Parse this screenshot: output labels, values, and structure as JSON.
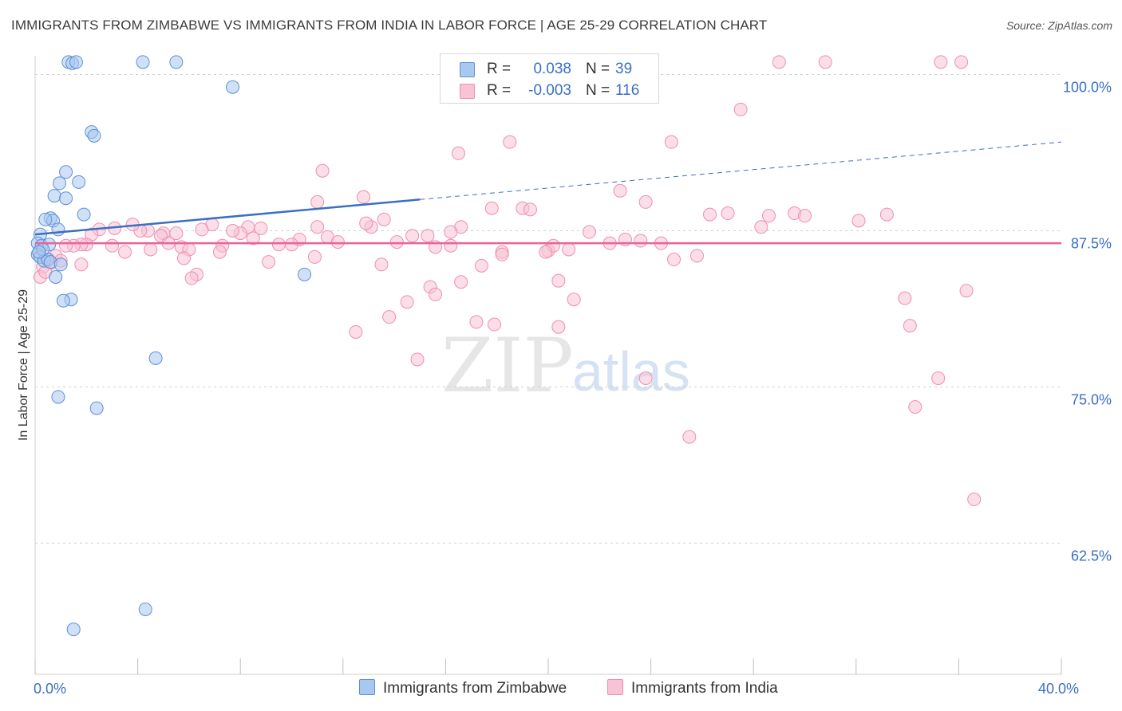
{
  "title": "IMMIGRANTS FROM ZIMBABWE VS IMMIGRANTS FROM INDIA IN LABOR FORCE | AGE 25-29 CORRELATION CHART",
  "source": "Source: ZipAtlas.com",
  "watermark": {
    "zip": "ZIP",
    "atlas": "atlas"
  },
  "stats": {
    "zimbabwe": {
      "r_label": "R =",
      "r_value": "0.038",
      "n_label": "N =",
      "n_value": "39"
    },
    "india": {
      "r_label": "R =",
      "r_value": "-0.003",
      "n_label": "N =",
      "n_value": "116"
    }
  },
  "legend": {
    "zimbabwe": "Immigrants from Zimbabwe",
    "india": "Immigrants from India"
  },
  "colors": {
    "zimbabwe_fill": "#a9c8f0",
    "zimbabwe_stroke": "#5e8fd6",
    "zimbabwe_line": "#3a6fc4",
    "india_fill": "#f8c3d4",
    "india_stroke": "#ee8fae",
    "india_line": "#e8649a",
    "tick_label": "#3a6fc4",
    "grid": "#d0d0d0"
  },
  "chart_data": {
    "type": "scatter",
    "title": "IMMIGRANTS FROM ZIMBABWE VS IMMIGRANTS FROM INDIA IN LABOR FORCE | AGE 25-29 CORRELATION CHART",
    "xlabel": "",
    "ylabel": "In Labor Force | Age 25-29",
    "xlim": [
      0,
      40
    ],
    "ylim": [
      52,
      101.5
    ],
    "x_ticks": [
      0,
      4,
      8,
      12,
      16,
      20,
      24,
      28,
      32,
      36,
      40
    ],
    "x_tick_labels": [
      {
        "value": 0,
        "label": "0.0%"
      },
      {
        "value": 40,
        "label": "40.0%"
      }
    ],
    "y_ticks": [
      {
        "value": 62.5,
        "label": "62.5%"
      },
      {
        "value": 75.0,
        "label": "75.0%"
      },
      {
        "value": 87.5,
        "label": "87.5%"
      },
      {
        "value": 100.0,
        "label": "100.0%"
      }
    ],
    "series": [
      {
        "name": "Immigrants from Zimbabwe",
        "r": 0.038,
        "n": 39,
        "trend": {
          "x0": 0,
          "y0": 87.2,
          "x1": 15,
          "y1": 90.0,
          "dashed_x1": 40,
          "dashed_y1": 94.6
        },
        "points": [
          [
            1.3,
            101
          ],
          [
            1.45,
            100.9
          ],
          [
            1.6,
            101
          ],
          [
            4.2,
            101
          ],
          [
            5.5,
            101
          ],
          [
            7.7,
            99
          ],
          [
            2.2,
            95.4
          ],
          [
            2.3,
            95.1
          ],
          [
            1.2,
            92.2
          ],
          [
            1.7,
            91.4
          ],
          [
            0.95,
            91.3
          ],
          [
            0.75,
            90.3
          ],
          [
            1.2,
            90.1
          ],
          [
            1.9,
            88.8
          ],
          [
            0.6,
            88.5
          ],
          [
            0.7,
            88.3
          ],
          [
            0.4,
            88.4
          ],
          [
            0.9,
            87.6
          ],
          [
            0.2,
            87.2
          ],
          [
            0.1,
            86.5
          ],
          [
            0.25,
            86.3
          ],
          [
            0.55,
            86.4
          ],
          [
            0.1,
            85.6
          ],
          [
            0.2,
            85.4
          ],
          [
            0.35,
            85.1
          ],
          [
            0.5,
            85.2
          ],
          [
            0.6,
            85.0
          ],
          [
            1.0,
            84.8
          ],
          [
            0.8,
            83.8
          ],
          [
            1.4,
            82.0
          ],
          [
            1.1,
            81.9
          ],
          [
            10.5,
            84.0
          ],
          [
            4.7,
            77.3
          ],
          [
            0.9,
            74.2
          ],
          [
            2.4,
            73.3
          ],
          [
            4.3,
            57.2
          ],
          [
            1.5,
            55.6
          ],
          [
            0.3,
            86.0
          ],
          [
            0.15,
            85.8
          ]
        ]
      },
      {
        "name": "Immigrants from India",
        "r": -0.003,
        "n": 116,
        "trend": {
          "x0": 0,
          "y0": 86.5,
          "x1": 40,
          "y1": 86.5
        },
        "points": [
          [
            29.0,
            101
          ],
          [
            30.8,
            101
          ],
          [
            35.3,
            101
          ],
          [
            36.1,
            101
          ],
          [
            27.5,
            97.2
          ],
          [
            16.5,
            93.7
          ],
          [
            18.5,
            94.6
          ],
          [
            24.8,
            94.6
          ],
          [
            11.2,
            92.3
          ],
          [
            22.8,
            90.7
          ],
          [
            12.8,
            90.2
          ],
          [
            11.0,
            89.8
          ],
          [
            17.8,
            89.3
          ],
          [
            23.8,
            89.8
          ],
          [
            26.3,
            88.8
          ],
          [
            27.0,
            88.9
          ],
          [
            28.6,
            88.7
          ],
          [
            29.6,
            88.9
          ],
          [
            30.0,
            88.7
          ],
          [
            33.2,
            88.8
          ],
          [
            32.1,
            88.3
          ],
          [
            28.3,
            87.8
          ],
          [
            19.0,
            89.3
          ],
          [
            19.3,
            89.2
          ],
          [
            21.6,
            87.4
          ],
          [
            23.0,
            86.8
          ],
          [
            24.4,
            86.5
          ],
          [
            25.8,
            85.5
          ],
          [
            20.0,
            85.9
          ],
          [
            20.2,
            86.3
          ],
          [
            18.2,
            85.8
          ],
          [
            16.2,
            86.3
          ],
          [
            15.6,
            86.2
          ],
          [
            14.1,
            86.6
          ],
          [
            13.1,
            87.8
          ],
          [
            14.7,
            87.1
          ],
          [
            15.3,
            87.1
          ],
          [
            16.6,
            87.8
          ],
          [
            16.2,
            87.4
          ],
          [
            13.6,
            88.4
          ],
          [
            12.9,
            88.1
          ],
          [
            11.0,
            87.8
          ],
          [
            11.4,
            87.0
          ],
          [
            10.3,
            86.8
          ],
          [
            10.9,
            85.4
          ],
          [
            9.5,
            86.4
          ],
          [
            9.1,
            85.0
          ],
          [
            8.8,
            87.7
          ],
          [
            8.3,
            87.8
          ],
          [
            8.5,
            86.9
          ],
          [
            8.0,
            87.3
          ],
          [
            7.7,
            87.5
          ],
          [
            7.3,
            86.3
          ],
          [
            6.9,
            88.0
          ],
          [
            6.5,
            87.6
          ],
          [
            5.5,
            87.3
          ],
          [
            5.0,
            87.3
          ],
          [
            4.9,
            87.1
          ],
          [
            5.2,
            86.5
          ],
          [
            4.4,
            87.5
          ],
          [
            4.1,
            87.5
          ],
          [
            3.8,
            88.0
          ],
          [
            3.1,
            87.7
          ],
          [
            2.5,
            87.6
          ],
          [
            2.2,
            87.2
          ],
          [
            2.0,
            86.4
          ],
          [
            1.8,
            86.4
          ],
          [
            1.5,
            86.3
          ],
          [
            1.2,
            86.3
          ],
          [
            0.8,
            85.5
          ],
          [
            1.0,
            85.1
          ],
          [
            0.6,
            84.9
          ],
          [
            0.45,
            85.2
          ],
          [
            0.3,
            84.6
          ],
          [
            3.0,
            86.3
          ],
          [
            3.5,
            85.8
          ],
          [
            4.5,
            86.0
          ],
          [
            5.7,
            86.2
          ],
          [
            6.0,
            86.0
          ],
          [
            5.8,
            85.3
          ],
          [
            7.2,
            85.8
          ],
          [
            6.3,
            84.0
          ],
          [
            6.1,
            83.7
          ],
          [
            17.4,
            84.7
          ],
          [
            16.6,
            83.4
          ],
          [
            13.5,
            84.8
          ],
          [
            11.8,
            86.6
          ],
          [
            10.0,
            86.4
          ],
          [
            23.6,
            86.7
          ],
          [
            22.4,
            86.5
          ],
          [
            20.8,
            86.0
          ],
          [
            19.9,
            85.8
          ],
          [
            20.4,
            83.5
          ],
          [
            24.9,
            85.2
          ],
          [
            18.2,
            85.6
          ],
          [
            15.4,
            83.0
          ],
          [
            14.5,
            81.8
          ],
          [
            13.8,
            80.6
          ],
          [
            12.5,
            79.4
          ],
          [
            14.9,
            77.2
          ],
          [
            17.2,
            80.2
          ],
          [
            20.4,
            79.8
          ],
          [
            17.9,
            80.0
          ],
          [
            15.6,
            82.4
          ],
          [
            21.0,
            82.0
          ],
          [
            23.8,
            75.7
          ],
          [
            25.5,
            71.0
          ],
          [
            33.9,
            82.1
          ],
          [
            34.1,
            79.9
          ],
          [
            34.3,
            73.4
          ],
          [
            35.2,
            75.7
          ],
          [
            36.3,
            82.7
          ],
          [
            36.6,
            66.0
          ],
          [
            0.2,
            83.8
          ],
          [
            0.4,
            84.2
          ],
          [
            1.8,
            84.8
          ]
        ]
      }
    ]
  }
}
